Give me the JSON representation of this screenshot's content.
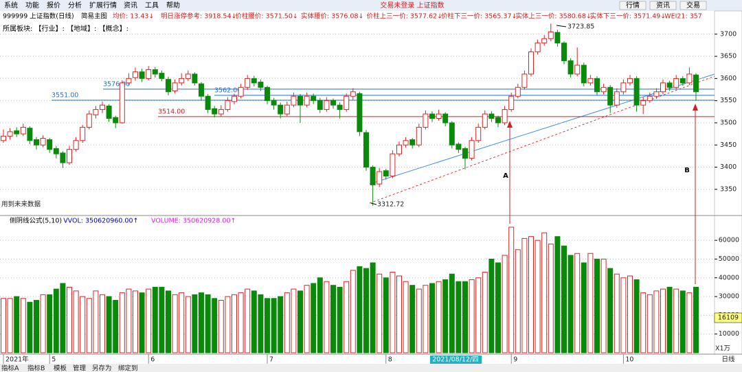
{
  "ui": {
    "menu": [
      "系统",
      "功能",
      "报价",
      "分析",
      "扩展行情",
      "资讯",
      "工具",
      "帮助"
    ],
    "center_title": "交易未登录 上证指数",
    "buttons": [
      "行情",
      "资讯",
      "交易"
    ],
    "symbol": "999999 上证指数(日线)",
    "template": "简易主图",
    "header_items": [
      "均价: 13.43↓",
      "明日涨停参考: 3918.54↓",
      "价柱腰价: 3571.50↓",
      "实体腰价: 3576.08↓",
      "价柱上三一价: 3577.62↓",
      "价柱下三一价: 3565.37↓",
      "实体上三一价: 3580.68↓",
      "实体下三一价: 3571.49↓",
      "WEI21: 357"
    ],
    "sector_row": "所属板块:   【行业】:     【地域】:     【概念】:",
    "volume_header": [
      "侧阴线公式(5,10)",
      "VVOL: 350620960.00↑",
      "VOLUME: 350620928.00↑"
    ],
    "tabs": [
      "指标A",
      "指标B",
      "模板",
      "管理",
      "另存为",
      "绑定到"
    ],
    "period": "日线",
    "cursor_value": "16109",
    "volume_unit": "X1万"
  },
  "chart_data": {
    "type": "candlestick",
    "ylim": [
      3294,
      3726
    ],
    "yticks": [
      3350,
      3400,
      3450,
      3500,
      3550,
      3600,
      3650,
      3700
    ],
    "levels": [
      {
        "value": 3576,
        "label": "3576.00",
        "color": "#1e6fd0"
      },
      {
        "value": 3562,
        "label": "3562.00",
        "color": "#1e6fd0"
      },
      {
        "value": 3551,
        "label": "3551.00",
        "color": "#1e6fd0"
      },
      {
        "value": 3514,
        "label": "3514.00",
        "color": "#d02020"
      }
    ],
    "annotations": {
      "high": "3723.85",
      "low": "3312.72",
      "a": "A",
      "b": "B",
      "future": "用到未来数据"
    },
    "up_color": "#e02020",
    "down_color": "#0a8a0a",
    "candles": [
      [
        3460,
        3485,
        3455,
        3470
      ],
      [
        3470,
        3488,
        3462,
        3480
      ],
      [
        3482,
        3490,
        3468,
        3475
      ],
      [
        3475,
        3498,
        3470,
        3490
      ],
      [
        3488,
        3492,
        3452,
        3460
      ],
      [
        3462,
        3468,
        3440,
        3450
      ],
      [
        3450,
        3472,
        3445,
        3465
      ],
      [
        3462,
        3466,
        3432,
        3440
      ],
      [
        3442,
        3448,
        3420,
        3430
      ],
      [
        3432,
        3436,
        3398,
        3410
      ],
      [
        3410,
        3448,
        3405,
        3440
      ],
      [
        3440,
        3468,
        3435,
        3460
      ],
      [
        3460,
        3495,
        3455,
        3490
      ],
      [
        3490,
        3528,
        3485,
        3520
      ],
      [
        3518,
        3538,
        3510,
        3530
      ],
      [
        3530,
        3548,
        3522,
        3540
      ],
      [
        3538,
        3542,
        3502,
        3510
      ],
      [
        3512,
        3516,
        3488,
        3500
      ],
      [
        3500,
        3596,
        3498,
        3590
      ],
      [
        3590,
        3612,
        3585,
        3600
      ],
      [
        3602,
        3625,
        3595,
        3615
      ],
      [
        3615,
        3622,
        3592,
        3600
      ],
      [
        3600,
        3628,
        3596,
        3620
      ],
      [
        3620,
        3626,
        3602,
        3610
      ],
      [
        3612,
        3618,
        3594,
        3600
      ],
      [
        3598,
        3604,
        3562,
        3570
      ],
      [
        3572,
        3598,
        3566,
        3590
      ],
      [
        3590,
        3612,
        3584,
        3600
      ],
      [
        3600,
        3618,
        3594,
        3610
      ],
      [
        3610,
        3614,
        3584,
        3590
      ],
      [
        3588,
        3592,
        3550,
        3560
      ],
      [
        3560,
        3565,
        3522,
        3530
      ],
      [
        3532,
        3538,
        3512,
        3520
      ],
      [
        3520,
        3540,
        3514,
        3530
      ],
      [
        3530,
        3558,
        3525,
        3550
      ],
      [
        3548,
        3566,
        3542,
        3560
      ],
      [
        3560,
        3588,
        3555,
        3580
      ],
      [
        3580,
        3608,
        3574,
        3600
      ],
      [
        3600,
        3606,
        3582,
        3590
      ],
      [
        3592,
        3598,
        3572,
        3580
      ],
      [
        3580,
        3584,
        3542,
        3550
      ],
      [
        3550,
        3556,
        3530,
        3540
      ],
      [
        3540,
        3546,
        3510,
        3520
      ],
      [
        3520,
        3548,
        3515,
        3540
      ],
      [
        3540,
        3568,
        3535,
        3560
      ],
      [
        3560,
        3565,
        3500,
        3540
      ],
      [
        3540,
        3568,
        3535,
        3560
      ],
      [
        3560,
        3566,
        3542,
        3550
      ],
      [
        3550,
        3556,
        3522,
        3530
      ],
      [
        3530,
        3558,
        3525,
        3550
      ],
      [
        3550,
        3555,
        3532,
        3540
      ],
      [
        3540,
        3546,
        3510,
        3530
      ],
      [
        3530,
        3566,
        3525,
        3560
      ],
      [
        3560,
        3578,
        3552,
        3570
      ],
      [
        3566,
        3570,
        3470,
        3480
      ],
      [
        3478,
        3484,
        3392,
        3400
      ],
      [
        3400,
        3404,
        3312.72,
        3360
      ],
      [
        3362,
        3398,
        3355,
        3390
      ],
      [
        3392,
        3396,
        3372,
        3380
      ],
      [
        3380,
        3438,
        3375,
        3430
      ],
      [
        3430,
        3458,
        3424,
        3450
      ],
      [
        3450,
        3468,
        3444,
        3460
      ],
      [
        3462,
        3466,
        3442,
        3450
      ],
      [
        3450,
        3498,
        3445,
        3490
      ],
      [
        3490,
        3528,
        3485,
        3520
      ],
      [
        3520,
        3526,
        3502,
        3510
      ],
      [
        3510,
        3530,
        3505,
        3520
      ],
      [
        3520,
        3524,
        3492,
        3500
      ],
      [
        3500,
        3504,
        3442,
        3450
      ],
      [
        3452,
        3456,
        3432,
        3440
      ],
      [
        3442,
        3446,
        3395,
        3420
      ],
      [
        3420,
        3468,
        3415,
        3460
      ],
      [
        3460,
        3498,
        3455,
        3490
      ],
      [
        3490,
        3528,
        3485,
        3520
      ],
      [
        3520,
        3526,
        3502,
        3510
      ],
      [
        3512,
        3516,
        3490,
        3500
      ],
      [
        3500,
        3538,
        3495,
        3530
      ],
      [
        3530,
        3568,
        3525,
        3560
      ],
      [
        3560,
        3588,
        3555,
        3580
      ],
      [
        3580,
        3618,
        3575,
        3610
      ],
      [
        3610,
        3668,
        3605,
        3660
      ],
      [
        3660,
        3688,
        3654,
        3680
      ],
      [
        3680,
        3698,
        3674,
        3690
      ],
      [
        3690,
        3723.85,
        3684,
        3705
      ],
      [
        3704,
        3710,
        3672,
        3680
      ],
      [
        3680,
        3684,
        3632,
        3640
      ],
      [
        3640,
        3646,
        3602,
        3610
      ],
      [
        3610,
        3670,
        3605,
        3630
      ],
      [
        3630,
        3636,
        3582,
        3590
      ],
      [
        3590,
        3608,
        3584,
        3600
      ],
      [
        3600,
        3605,
        3562,
        3570
      ],
      [
        3570,
        3588,
        3564,
        3580
      ],
      [
        3580,
        3585,
        3522,
        3540
      ],
      [
        3540,
        3578,
        3534,
        3570
      ],
      [
        3570,
        3598,
        3564,
        3590
      ],
      [
        3590,
        3608,
        3584,
        3600
      ],
      [
        3600,
        3605,
        3525,
        3540
      ],
      [
        3540,
        3558,
        3520,
        3550
      ],
      [
        3550,
        3568,
        3545,
        3560
      ],
      [
        3560,
        3578,
        3554,
        3570
      ],
      [
        3570,
        3598,
        3565,
        3590
      ],
      [
        3590,
        3595,
        3572,
        3580
      ],
      [
        3580,
        3608,
        3575,
        3600
      ],
      [
        3600,
        3605,
        3584,
        3590
      ],
      [
        3590,
        3625,
        3585,
        3610
      ],
      [
        3608,
        3612,
        3550,
        3570
      ]
    ],
    "volume": {
      "ylim": [
        0,
        72500
      ],
      "yticks": [
        10000,
        20000,
        30000,
        40000,
        50000,
        60000
      ],
      "values": [
        29000,
        29000,
        30000,
        29000,
        27000,
        28000,
        31000,
        31000,
        34000,
        37000,
        35000,
        33000,
        30000,
        29000,
        33000,
        31000,
        30000,
        28000,
        32000,
        34000,
        33000,
        32000,
        34000,
        35000,
        35000,
        33000,
        31000,
        32000,
        30000,
        31000,
        32000,
        31000,
        29000,
        28000,
        30000,
        31000,
        32000,
        34000,
        33000,
        31000,
        29000,
        29000,
        30000,
        32000,
        34000,
        33000,
        36000,
        37000,
        40000,
        38000,
        36000,
        35000,
        38000,
        44000,
        46000,
        45000,
        48000,
        42000,
        40000,
        43000,
        41000,
        38000,
        36000,
        34000,
        36000,
        37000,
        38000,
        39000,
        42000,
        38000,
        38000,
        39000,
        40000,
        43000,
        50000,
        48000,
        52000,
        67000,
        55000,
        61000,
        62000,
        60000,
        64000,
        58000,
        62000,
        57000,
        52000,
        53000,
        48000,
        53000,
        50000,
        50000,
        45000,
        42000,
        40000,
        41000,
        39000,
        32000,
        31000,
        33000,
        34000,
        35000,
        34000,
        33000,
        32000,
        35000
      ]
    },
    "date_labels": [
      {
        "index": 0,
        "label": "2021年"
      },
      {
        "index": 7,
        "label": "5"
      },
      {
        "index": 22,
        "label": "6"
      },
      {
        "index": 40,
        "label": "7"
      },
      {
        "index": 58,
        "label": "8"
      },
      {
        "index": 77,
        "label": "9"
      },
      {
        "index": 94,
        "label": "10"
      }
    ],
    "cursor_date": "2021/08/12/四"
  }
}
